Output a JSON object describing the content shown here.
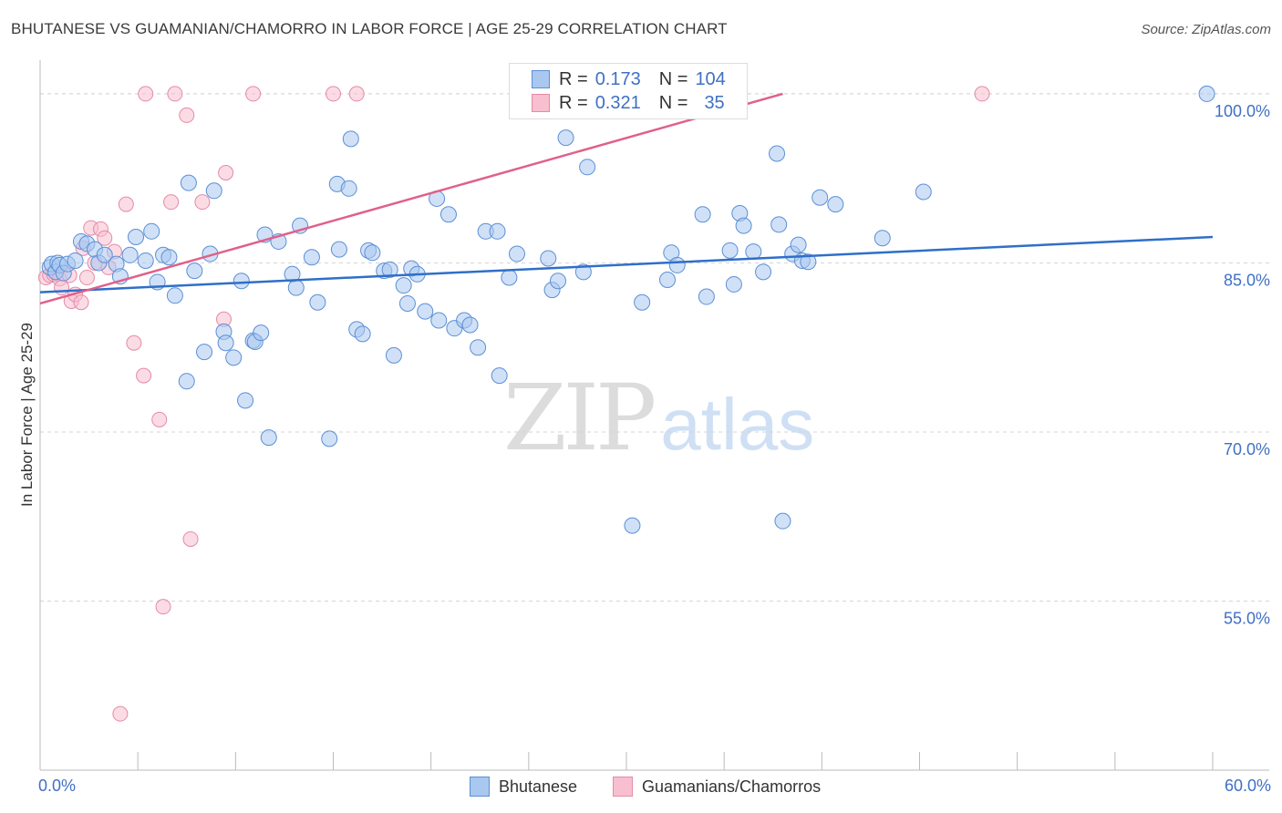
{
  "header": {
    "title": "BHUTANESE VS GUAMANIAN/CHAMORRO IN LABOR FORCE | AGE 25-29 CORRELATION CHART",
    "source": "Source: ZipAtlas.com"
  },
  "watermark": {
    "zip": "ZIP",
    "atlas": "atlas"
  },
  "legend": {
    "rows": [
      {
        "r_label": "R =",
        "r_value": "0.173",
        "n_label": "N =",
        "n_value": "104"
      },
      {
        "r_label": "R =",
        "r_value": "0.321",
        "n_label": "N =",
        "n_value": "35"
      }
    ]
  },
  "colors": {
    "bhutanese_fill": "#a9c8f0",
    "bhutanese_stroke": "#5b8fd6",
    "bhutanese_line": "#2f6fc9",
    "guam_fill": "#f7bfd0",
    "guam_stroke": "#e58aa8",
    "guam_line": "#e0608a",
    "grid": "#d5d5d5",
    "tick_label": "#3f70c4"
  },
  "chart_data": {
    "type": "scatter",
    "title": "BHUTANESE VS GUAMANIAN/CHAMORRO IN LABOR FORCE | AGE 25-29 CORRELATION CHART",
    "xlabel": "",
    "ylabel": "In Labor Force | Age 25-29",
    "xlim": [
      0,
      60
    ],
    "ylim": [
      40,
      102.5
    ],
    "x_tick_labels": [
      "0.0%",
      "60.0%"
    ],
    "y_ticks": [
      55,
      70,
      85,
      100
    ],
    "y_tick_labels": [
      "55.0%",
      "70.0%",
      "85.0%",
      "100.0%"
    ],
    "grid": "horizontal dashed",
    "legend_position": "top-center",
    "series": [
      {
        "name": "Bhutanese",
        "r": 0.173,
        "n": 104,
        "trend": {
          "x": [
            0,
            60
          ],
          "y": [
            82.4,
            87.3
          ]
        },
        "points": [
          [
            0.5,
            84.6
          ],
          [
            0.6,
            84.9
          ],
          [
            0.8,
            84.2
          ],
          [
            0.9,
            85.0
          ],
          [
            1.0,
            84.8
          ],
          [
            1.2,
            84.1
          ],
          [
            1.4,
            84.9
          ],
          [
            1.8,
            85.2
          ],
          [
            2.1,
            86.9
          ],
          [
            2.4,
            86.7
          ],
          [
            2.8,
            86.2
          ],
          [
            3.0,
            85.0
          ],
          [
            3.3,
            85.7
          ],
          [
            3.9,
            84.9
          ],
          [
            4.1,
            83.8
          ],
          [
            4.6,
            85.7
          ],
          [
            4.9,
            87.3
          ],
          [
            5.4,
            85.2
          ],
          [
            5.7,
            87.8
          ],
          [
            6.0,
            83.3
          ],
          [
            6.3,
            85.7
          ],
          [
            6.6,
            85.5
          ],
          [
            6.9,
            82.1
          ],
          [
            7.5,
            74.5
          ],
          [
            7.6,
            92.1
          ],
          [
            7.9,
            84.3
          ],
          [
            8.4,
            77.1
          ],
          [
            8.7,
            85.8
          ],
          [
            8.9,
            91.4
          ],
          [
            9.4,
            78.9
          ],
          [
            9.5,
            77.9
          ],
          [
            9.9,
            76.6
          ],
          [
            10.3,
            83.4
          ],
          [
            10.5,
            72.8
          ],
          [
            10.9,
            78.1
          ],
          [
            11.0,
            78.0
          ],
          [
            11.3,
            78.8
          ],
          [
            11.5,
            87.5
          ],
          [
            11.7,
            69.5
          ],
          [
            12.2,
            86.9
          ],
          [
            12.9,
            84.0
          ],
          [
            13.1,
            82.8
          ],
          [
            13.3,
            88.3
          ],
          [
            13.9,
            85.5
          ],
          [
            14.2,
            81.5
          ],
          [
            14.8,
            69.4
          ],
          [
            15.2,
            92.0
          ],
          [
            15.3,
            86.2
          ],
          [
            15.8,
            91.6
          ],
          [
            15.9,
            96.0
          ],
          [
            16.2,
            79.1
          ],
          [
            16.5,
            78.7
          ],
          [
            16.8,
            86.1
          ],
          [
            17.0,
            85.9
          ],
          [
            17.6,
            84.3
          ],
          [
            17.9,
            84.4
          ],
          [
            18.1,
            76.8
          ],
          [
            18.6,
            83.0
          ],
          [
            18.8,
            81.4
          ],
          [
            19.0,
            84.5
          ],
          [
            19.3,
            84.0
          ],
          [
            19.7,
            80.7
          ],
          [
            20.3,
            90.7
          ],
          [
            20.4,
            79.9
          ],
          [
            20.9,
            89.3
          ],
          [
            21.2,
            79.2
          ],
          [
            21.7,
            79.9
          ],
          [
            22.0,
            79.5
          ],
          [
            22.4,
            77.5
          ],
          [
            22.8,
            87.8
          ],
          [
            23.4,
            87.8
          ],
          [
            23.5,
            75.0
          ],
          [
            24.0,
            83.7
          ],
          [
            24.4,
            85.8
          ],
          [
            26.0,
            85.4
          ],
          [
            26.2,
            82.6
          ],
          [
            26.5,
            83.4
          ],
          [
            26.9,
            96.1
          ],
          [
            27.8,
            84.2
          ],
          [
            28.0,
            93.5
          ],
          [
            30.3,
            61.7
          ],
          [
            30.8,
            81.5
          ],
          [
            32.1,
            83.5
          ],
          [
            32.3,
            85.9
          ],
          [
            32.6,
            84.8
          ],
          [
            33.9,
            89.3
          ],
          [
            34.1,
            82.0
          ],
          [
            35.3,
            86.1
          ],
          [
            35.5,
            83.1
          ],
          [
            35.8,
            89.4
          ],
          [
            36.0,
            88.3
          ],
          [
            36.5,
            86.0
          ],
          [
            37.0,
            84.2
          ],
          [
            37.7,
            94.7
          ],
          [
            37.8,
            88.4
          ],
          [
            38.0,
            62.1
          ],
          [
            38.5,
            85.8
          ],
          [
            38.8,
            86.6
          ],
          [
            39.0,
            85.2
          ],
          [
            39.3,
            85.1
          ],
          [
            39.9,
            90.8
          ],
          [
            40.7,
            90.2
          ],
          [
            43.1,
            87.2
          ],
          [
            45.2,
            91.3
          ],
          [
            59.7,
            100.0
          ]
        ]
      },
      {
        "name": "Guamanians/Chamorros",
        "r": 0.321,
        "n": 35,
        "trend": {
          "x": [
            0,
            38
          ],
          "y": [
            81.4,
            100.0
          ]
        },
        "points": [
          [
            0.3,
            83.7
          ],
          [
            0.5,
            83.9
          ],
          [
            0.7,
            84.0
          ],
          [
            1.0,
            83.6
          ],
          [
            1.1,
            82.8
          ],
          [
            1.5,
            83.9
          ],
          [
            1.6,
            81.6
          ],
          [
            1.8,
            82.2
          ],
          [
            2.1,
            81.5
          ],
          [
            2.2,
            86.3
          ],
          [
            2.4,
            83.7
          ],
          [
            2.6,
            88.1
          ],
          [
            2.8,
            85.0
          ],
          [
            3.1,
            88.0
          ],
          [
            3.3,
            87.2
          ],
          [
            3.5,
            84.6
          ],
          [
            3.8,
            86.0
          ],
          [
            4.1,
            45.0
          ],
          [
            4.4,
            90.2
          ],
          [
            4.8,
            77.9
          ],
          [
            5.3,
            75.0
          ],
          [
            5.4,
            100.0
          ],
          [
            6.1,
            71.1
          ],
          [
            6.3,
            54.5
          ],
          [
            6.7,
            90.4
          ],
          [
            6.9,
            100.0
          ],
          [
            7.5,
            98.1
          ],
          [
            7.7,
            60.5
          ],
          [
            8.3,
            90.4
          ],
          [
            9.4,
            80.0
          ],
          [
            9.5,
            93.0
          ],
          [
            10.9,
            100.0
          ],
          [
            15.0,
            100.0
          ],
          [
            16.2,
            100.0
          ],
          [
            48.2,
            100.0
          ]
        ]
      }
    ]
  },
  "bottom_legend": {
    "items": [
      {
        "label": "Bhutanese"
      },
      {
        "label": "Guamanians/Chamorros"
      }
    ]
  }
}
